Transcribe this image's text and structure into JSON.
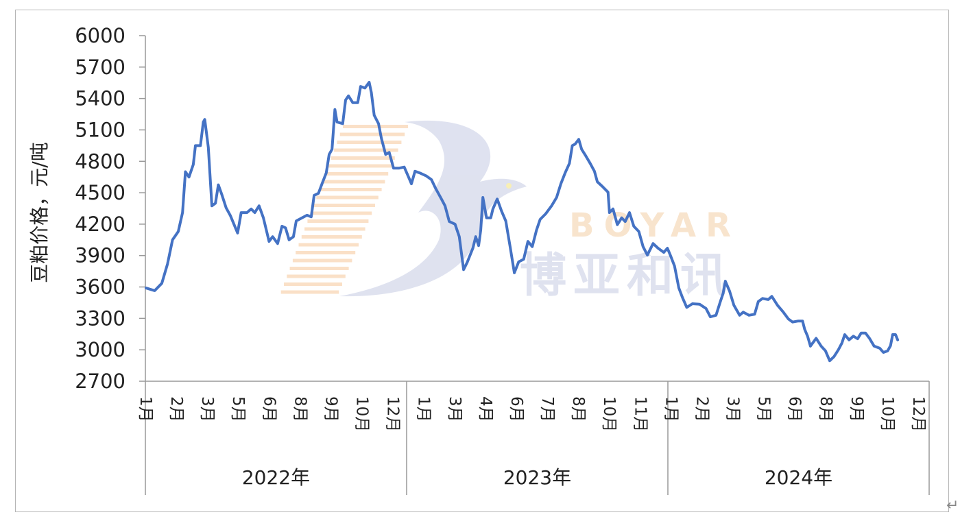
{
  "chart_data": {
    "type": "line",
    "title": "",
    "ylabel": "豆粕价格，元/吨",
    "xlabel": "",
    "ylim": [
      2700,
      6000
    ],
    "yticks": [
      2700,
      3000,
      3300,
      3600,
      3900,
      4200,
      4500,
      4800,
      5100,
      5400,
      5700,
      6000
    ],
    "grid": false,
    "legend": "none",
    "line_color": "#4472C4",
    "x_axis_groups": [
      {
        "year": "2022年",
        "months": [
          "1月",
          "2月",
          "3月",
          "5月",
          "6月",
          "8月",
          "9月",
          "10月",
          "12月"
        ]
      },
      {
        "year": "2023年",
        "months": [
          "1月",
          "3月",
          "4月",
          "6月",
          "7月",
          "8月",
          "10月",
          "11月"
        ]
      },
      {
        "year": "2024年",
        "months": [
          "1月",
          "2月",
          "3月",
          "5月",
          "6月",
          "8月",
          "9月",
          "10月",
          "12月"
        ]
      }
    ],
    "series": [
      {
        "points": [
          [
            "2022-01-02",
            3590
          ],
          [
            "2022-01-14",
            3565
          ],
          [
            "2022-01-24",
            3635
          ],
          [
            "2022-02-01",
            3820
          ],
          [
            "2022-02-08",
            4050
          ],
          [
            "2022-02-16",
            4130
          ],
          [
            "2022-02-22",
            4310
          ],
          [
            "2022-02-26",
            4700
          ],
          [
            "2022-03-03",
            4650
          ],
          [
            "2022-03-09",
            4770
          ],
          [
            "2022-03-12",
            4950
          ],
          [
            "2022-03-19",
            4950
          ],
          [
            "2022-03-23",
            5175
          ],
          [
            "2022-03-25",
            5200
          ],
          [
            "2022-03-30",
            4933
          ],
          [
            "2022-04-04",
            4375
          ],
          [
            "2022-04-09",
            4400
          ],
          [
            "2022-04-13",
            4575
          ],
          [
            "2022-04-18",
            4480
          ],
          [
            "2022-04-24",
            4355
          ],
          [
            "2022-04-30",
            4280
          ],
          [
            "2022-05-06",
            4180
          ],
          [
            "2022-05-10",
            4115
          ],
          [
            "2022-05-15",
            4310
          ],
          [
            "2022-05-23",
            4310
          ],
          [
            "2022-05-29",
            4345
          ],
          [
            "2022-06-03",
            4310
          ],
          [
            "2022-06-09",
            4375
          ],
          [
            "2022-06-15",
            4260
          ],
          [
            "2022-06-23",
            4035
          ],
          [
            "2022-06-28",
            4080
          ],
          [
            "2022-07-05",
            4015
          ],
          [
            "2022-07-11",
            4180
          ],
          [
            "2022-07-16",
            4165
          ],
          [
            "2022-07-21",
            4050
          ],
          [
            "2022-07-27",
            4080
          ],
          [
            "2022-07-31",
            4230
          ],
          [
            "2022-08-08",
            4260
          ],
          [
            "2022-08-15",
            4285
          ],
          [
            "2022-08-21",
            4270
          ],
          [
            "2022-08-25",
            4475
          ],
          [
            "2022-08-31",
            4495
          ],
          [
            "2022-09-05",
            4585
          ],
          [
            "2022-09-11",
            4690
          ],
          [
            "2022-09-15",
            4865
          ],
          [
            "2022-09-19",
            4915
          ],
          [
            "2022-09-23",
            5295
          ],
          [
            "2022-09-26",
            5175
          ],
          [
            "2022-10-04",
            5160
          ],
          [
            "2022-10-08",
            5385
          ],
          [
            "2022-10-12",
            5425
          ],
          [
            "2022-10-18",
            5360
          ],
          [
            "2022-10-25",
            5360
          ],
          [
            "2022-10-29",
            5515
          ],
          [
            "2022-11-04",
            5500
          ],
          [
            "2022-11-10",
            5555
          ],
          [
            "2022-11-13",
            5455
          ],
          [
            "2022-11-17",
            5240
          ],
          [
            "2022-11-23",
            5160
          ],
          [
            "2022-11-27",
            5020
          ],
          [
            "2022-12-03",
            4865
          ],
          [
            "2022-12-08",
            4885
          ],
          [
            "2022-12-14",
            4735
          ],
          [
            "2022-12-22",
            4735
          ],
          [
            "2022-12-29",
            4745
          ],
          [
            "2023-01-04",
            4650
          ],
          [
            "2023-01-08",
            4585
          ],
          [
            "2023-01-13",
            4705
          ],
          [
            "2023-01-21",
            4685
          ],
          [
            "2023-01-29",
            4660
          ],
          [
            "2023-02-05",
            4625
          ],
          [
            "2023-02-11",
            4540
          ],
          [
            "2023-02-19",
            4440
          ],
          [
            "2023-02-24",
            4375
          ],
          [
            "2023-03-02",
            4225
          ],
          [
            "2023-03-10",
            4200
          ],
          [
            "2023-03-16",
            4080
          ],
          [
            "2023-03-22",
            3765
          ],
          [
            "2023-03-27",
            3835
          ],
          [
            "2023-04-04",
            3970
          ],
          [
            "2023-04-08",
            4080
          ],
          [
            "2023-04-12",
            3995
          ],
          [
            "2023-04-15",
            4145
          ],
          [
            "2023-04-18",
            4455
          ],
          [
            "2023-04-23",
            4260
          ],
          [
            "2023-04-29",
            4260
          ],
          [
            "2023-05-02",
            4345
          ],
          [
            "2023-05-08",
            4440
          ],
          [
            "2023-05-14",
            4325
          ],
          [
            "2023-05-20",
            4230
          ],
          [
            "2023-05-26",
            3985
          ],
          [
            "2023-06-01",
            3735
          ],
          [
            "2023-06-07",
            3840
          ],
          [
            "2023-06-14",
            3865
          ],
          [
            "2023-06-20",
            4035
          ],
          [
            "2023-06-26",
            3985
          ],
          [
            "2023-07-02",
            4145
          ],
          [
            "2023-07-07",
            4245
          ],
          [
            "2023-07-15",
            4300
          ],
          [
            "2023-07-23",
            4375
          ],
          [
            "2023-07-30",
            4455
          ],
          [
            "2023-08-05",
            4585
          ],
          [
            "2023-08-11",
            4690
          ],
          [
            "2023-08-17",
            4780
          ],
          [
            "2023-08-21",
            4950
          ],
          [
            "2023-08-25",
            4965
          ],
          [
            "2023-08-30",
            5010
          ],
          [
            "2023-09-03",
            4915
          ],
          [
            "2023-09-09",
            4850
          ],
          [
            "2023-09-15",
            4780
          ],
          [
            "2023-09-21",
            4705
          ],
          [
            "2023-09-25",
            4605
          ],
          [
            "2023-10-02",
            4560
          ],
          [
            "2023-10-10",
            4505
          ],
          [
            "2023-10-12",
            4310
          ],
          [
            "2023-10-17",
            4345
          ],
          [
            "2023-10-23",
            4195
          ],
          [
            "2023-10-29",
            4260
          ],
          [
            "2023-11-03",
            4225
          ],
          [
            "2023-11-09",
            4310
          ],
          [
            "2023-11-15",
            4180
          ],
          [
            "2023-11-22",
            4130
          ],
          [
            "2023-11-28",
            3985
          ],
          [
            "2023-12-04",
            3905
          ],
          [
            "2023-12-12",
            4015
          ],
          [
            "2023-12-19",
            3970
          ],
          [
            "2023-12-27",
            3930
          ],
          [
            "2024-01-01",
            3970
          ],
          [
            "2024-01-05",
            3905
          ],
          [
            "2024-01-11",
            3800
          ],
          [
            "2024-01-17",
            3590
          ],
          [
            "2024-01-22",
            3500
          ],
          [
            "2024-01-28",
            3405
          ],
          [
            "2024-02-05",
            3440
          ],
          [
            "2024-02-15",
            3435
          ],
          [
            "2024-02-24",
            3395
          ],
          [
            "2024-03-01",
            3315
          ],
          [
            "2024-03-09",
            3330
          ],
          [
            "2024-03-15",
            3460
          ],
          [
            "2024-03-19",
            3540
          ],
          [
            "2024-03-22",
            3655
          ],
          [
            "2024-03-28",
            3560
          ],
          [
            "2024-04-03",
            3425
          ],
          [
            "2024-04-11",
            3330
          ],
          [
            "2024-04-16",
            3360
          ],
          [
            "2024-04-24",
            3330
          ],
          [
            "2024-05-02",
            3340
          ],
          [
            "2024-05-07",
            3460
          ],
          [
            "2024-05-13",
            3490
          ],
          [
            "2024-05-21",
            3480
          ],
          [
            "2024-05-26",
            3510
          ],
          [
            "2024-06-03",
            3425
          ],
          [
            "2024-06-11",
            3360
          ],
          [
            "2024-06-18",
            3295
          ],
          [
            "2024-06-24",
            3265
          ],
          [
            "2024-07-02",
            3275
          ],
          [
            "2024-07-08",
            3275
          ],
          [
            "2024-07-11",
            3195
          ],
          [
            "2024-07-15",
            3130
          ],
          [
            "2024-07-19",
            3035
          ],
          [
            "2024-07-27",
            3110
          ],
          [
            "2024-08-03",
            3035
          ],
          [
            "2024-08-09",
            2990
          ],
          [
            "2024-08-15",
            2895
          ],
          [
            "2024-08-21",
            2935
          ],
          [
            "2024-08-27",
            3000
          ],
          [
            "2024-09-01",
            3065
          ],
          [
            "2024-09-05",
            3145
          ],
          [
            "2024-09-11",
            3095
          ],
          [
            "2024-09-17",
            3130
          ],
          [
            "2024-09-23",
            3105
          ],
          [
            "2024-09-28",
            3160
          ],
          [
            "2024-10-04",
            3160
          ],
          [
            "2024-10-10",
            3105
          ],
          [
            "2024-10-16",
            3035
          ],
          [
            "2024-10-24",
            3015
          ],
          [
            "2024-10-29",
            2975
          ],
          [
            "2024-11-04",
            2990
          ],
          [
            "2024-11-08",
            3040
          ],
          [
            "2024-11-11",
            3145
          ],
          [
            "2024-11-15",
            3145
          ],
          [
            "2024-11-18",
            3095
          ]
        ]
      }
    ]
  },
  "watermark": {
    "latin": "BOYAR",
    "chinese": "博亚和讯"
  },
  "return_mark": "↵"
}
